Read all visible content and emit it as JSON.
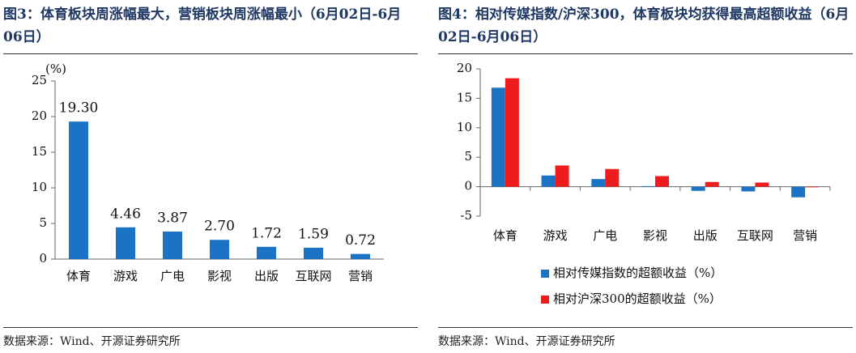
{
  "chart_data": [
    {
      "type": "bar",
      "title": "图3：体育板块周涨幅最大，营销板块周涨幅最小（6月02日-6月06日）",
      "ylabel": "(%)",
      "categories": [
        "体育",
        "游戏",
        "广电",
        "影视",
        "出版",
        "互联网",
        "营销"
      ],
      "values": [
        19.3,
        4.46,
        3.87,
        2.7,
        1.72,
        1.59,
        0.72
      ],
      "value_labels": [
        "19.30",
        "4.46",
        "3.87",
        "2.70",
        "1.72",
        "1.59",
        "0.72"
      ],
      "color": "#1a73c4",
      "ylim": [
        0,
        25
      ],
      "yticks": [
        0,
        5,
        10,
        15,
        20,
        25
      ],
      "source": "数据来源：Wind、开源证券研究所"
    },
    {
      "type": "grouped-bar",
      "title": "图4：相对传媒指数/沪深300，体育板块均获得最高超额收益（6月02日-6月06日）",
      "categories": [
        "体育",
        "游戏",
        "广电",
        "影视",
        "出版",
        "互联网",
        "营销"
      ],
      "series": [
        {
          "name": "相对传媒指数的超额收益（%）",
          "color": "#1a73c4",
          "values": [
            16.8,
            1.9,
            1.3,
            0.1,
            -0.7,
            -0.8,
            -1.8
          ]
        },
        {
          "name": "相对沪深300的超额收益（%）",
          "color": "#ee1c1c",
          "values": [
            18.4,
            3.6,
            3.0,
            1.8,
            0.8,
            0.7,
            -0.1
          ]
        }
      ],
      "ylim": [
        -5,
        20
      ],
      "yticks": [
        -5,
        0,
        5,
        10,
        15,
        20
      ],
      "legend": "bottom",
      "source": "数据来源：Wind、开源证券研究所"
    }
  ]
}
